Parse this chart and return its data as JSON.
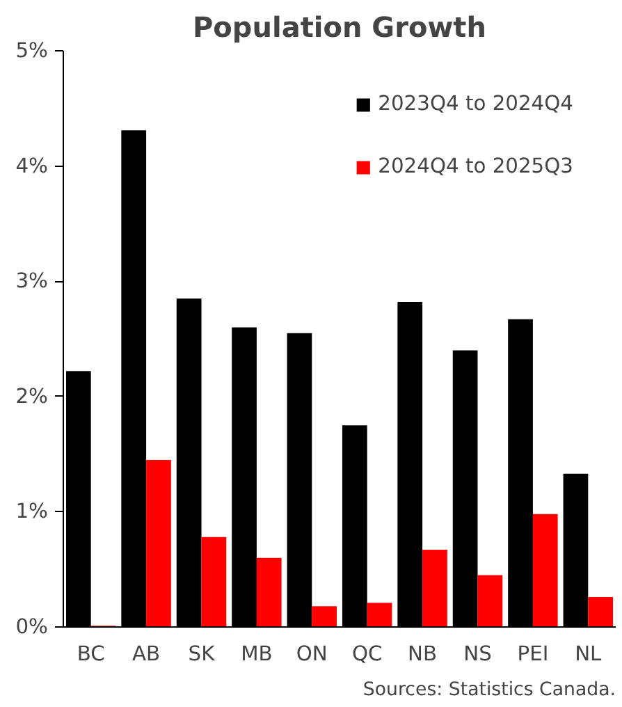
{
  "chart_data": {
    "type": "bar",
    "title": "Population Growth",
    "categories": [
      "BC",
      "AB",
      "SK",
      "MB",
      "ON",
      "QC",
      "NB",
      "NS",
      "PEI",
      "NL"
    ],
    "series": [
      {
        "name": "2023Q4 to 2024Q4",
        "color": "#000000",
        "values": [
          2.22,
          4.31,
          2.85,
          2.6,
          2.55,
          1.75,
          2.82,
          2.4,
          2.67,
          1.33
        ]
      },
      {
        "name": "2024Q4 to 2025Q3",
        "color": "#ff0000",
        "values": [
          0.01,
          1.45,
          0.78,
          0.6,
          0.18,
          0.21,
          0.67,
          0.45,
          0.98,
          0.26
        ]
      }
    ],
    "ylim": [
      0,
      5
    ],
    "yticks": [
      {
        "value": 0,
        "label": "0%"
      },
      {
        "value": 1,
        "label": "1%"
      },
      {
        "value": 2,
        "label": "2%"
      },
      {
        "value": 3,
        "label": "3%"
      },
      {
        "value": 4,
        "label": "4%"
      },
      {
        "value": 5,
        "label": "5%"
      }
    ],
    "grid": false,
    "legend": "top right",
    "annotations": [
      "Sources: Statistics Canada."
    ]
  }
}
